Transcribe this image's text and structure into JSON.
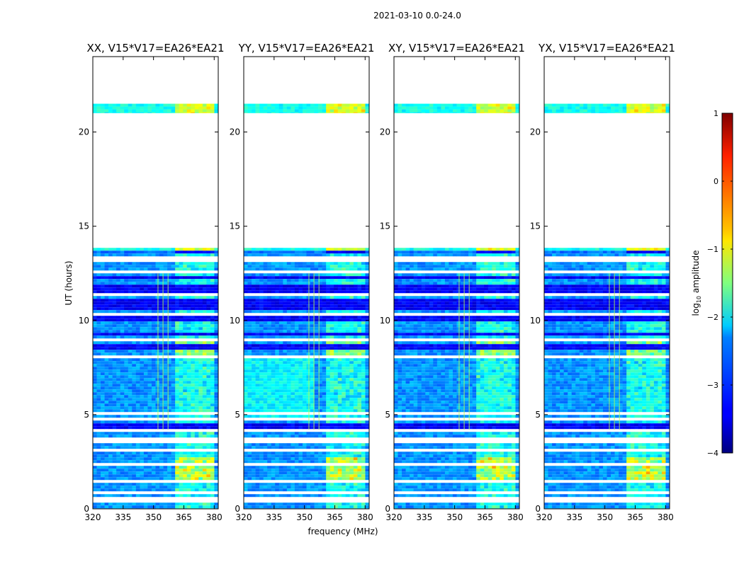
{
  "chart_data": {
    "type": "heatmap",
    "suptitle": "2021-03-10 0.0-24.0",
    "xlabel": "frequency (MHz)",
    "ylabel": "UT (hours)",
    "xlim": [
      320,
      382
    ],
    "ylim": [
      0,
      24
    ],
    "xticks": [
      320,
      335,
      350,
      365,
      380
    ],
    "yticks": [
      0,
      5,
      10,
      15,
      20
    ],
    "panels": [
      {
        "title": "XX, V15*V17=EA26*EA21",
        "pol": "XX"
      },
      {
        "title": "YY, V15*V17=EA26*EA21",
        "pol": "YY"
      },
      {
        "title": "XY, V15*V17=EA26*EA21",
        "pol": "XY"
      },
      {
        "title": "YX, V15*V17=EA26*EA21",
        "pol": "YX"
      }
    ],
    "data_blocks_hours": [
      [
        0,
        13.85
      ],
      [
        21.0,
        21.5
      ]
    ],
    "rfi_band_mhz": [
      360,
      380
    ],
    "colorbar": {
      "label": "log10 amplitude",
      "label_prefix": "log",
      "label_sub": "10",
      "label_suffix": " amplitude",
      "range": [
        -4,
        1
      ],
      "ticks": [
        "1",
        "0",
        "−1",
        "−2",
        "−3",
        "−4"
      ],
      "colormap": "jet"
    }
  }
}
